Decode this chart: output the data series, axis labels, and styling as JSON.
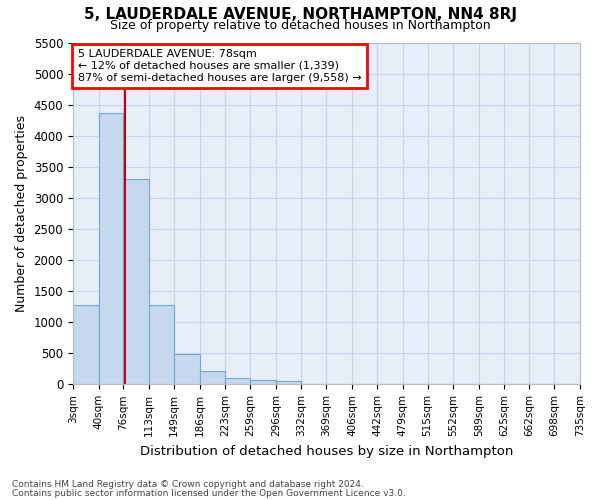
{
  "title1": "5, LAUDERDALE AVENUE, NORTHAMPTON, NN4 8RJ",
  "title2": "Size of property relative to detached houses in Northampton",
  "xlabel": "Distribution of detached houses by size in Northampton",
  "ylabel": "Number of detached properties",
  "footer1": "Contains HM Land Registry data © Crown copyright and database right 2024.",
  "footer2": "Contains public sector information licensed under the Open Government Licence v3.0.",
  "annotation_line1": "5 LAUDERDALE AVENUE: 78sqm",
  "annotation_line2": "← 12% of detached houses are smaller (1,339)",
  "annotation_line3": "87% of semi-detached houses are larger (9,558) →",
  "property_size": 78,
  "bar_color": "#c5d8ee",
  "bar_edge_color": "#6aaad4",
  "marker_color": "#cc0000",
  "bg_color": "#e8eef8",
  "grid_color": "#c8d4e8",
  "bin_edges": [
    3,
    40,
    76,
    113,
    149,
    186,
    223,
    259,
    296,
    332,
    369,
    406,
    442,
    479,
    515,
    552,
    589,
    625,
    662,
    698,
    735
  ],
  "tick_labels": [
    "3sqm",
    "40sqm",
    "76sqm",
    "113sqm",
    "149sqm",
    "186sqm",
    "223sqm",
    "259sqm",
    "296sqm",
    "332sqm",
    "369sqm",
    "406sqm",
    "442sqm",
    "479sqm",
    "515sqm",
    "552sqm",
    "589sqm",
    "625sqm",
    "662sqm",
    "698sqm",
    "735sqm"
  ],
  "values": [
    1270,
    4360,
    3300,
    1270,
    490,
    220,
    95,
    75,
    55,
    0,
    0,
    0,
    0,
    0,
    0,
    0,
    0,
    0,
    0,
    0
  ],
  "ylim_max": 5500,
  "ytick_step": 500
}
